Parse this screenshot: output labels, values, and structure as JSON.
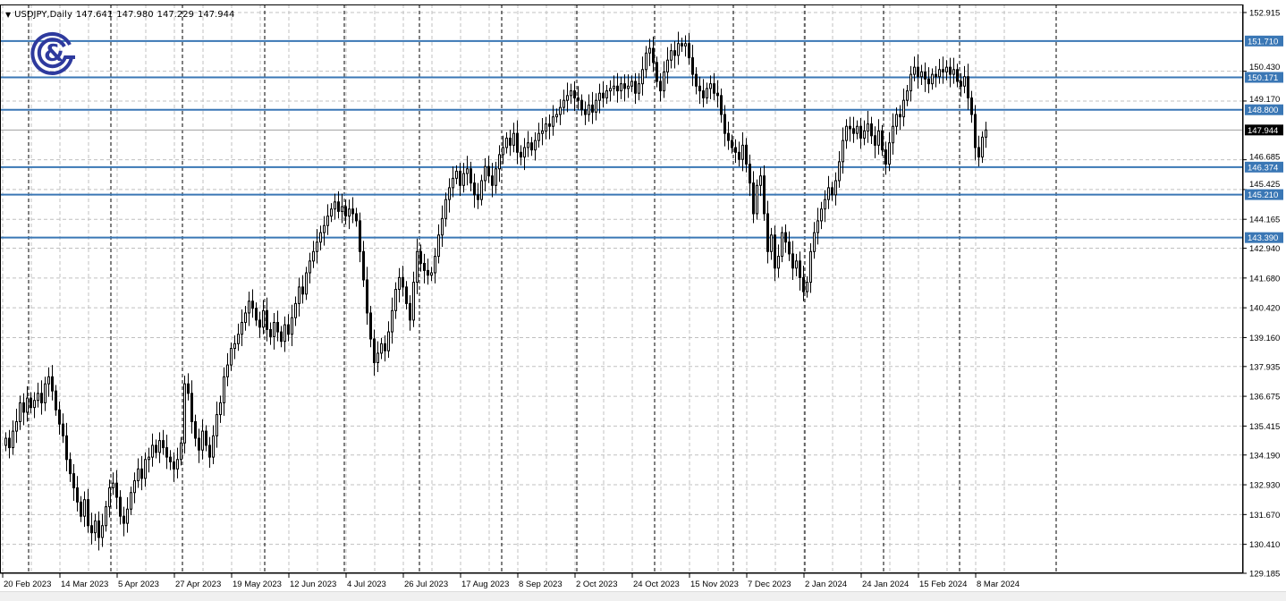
{
  "header": {
    "menu_icon": "triangle-down-icon",
    "symbol": "USDJPY,Daily",
    "open": "147.641",
    "high": "147.980",
    "low": "147.229",
    "close": "147.944"
  },
  "logo": {
    "text": "G&",
    "color": "#2e3a9e"
  },
  "colors": {
    "level_line": "#3a77b5",
    "level_label_bg": "#3a77b5",
    "current_label_bg": "#000000",
    "grid": "#c0c0c0",
    "bull_body": "#ffffff",
    "bear_body": "#000000"
  },
  "chart_data": {
    "type": "candlestick",
    "title": "USDJPY,Daily",
    "ylim": [
      129.185,
      152.915
    ],
    "y_ticks": [
      "152.915",
      "150.430",
      "149.170",
      "146.685",
      "145.425",
      "144.165",
      "142.940",
      "141.680",
      "140.420",
      "139.160",
      "137.935",
      "136.675",
      "135.415",
      "134.190",
      "132.930",
      "131.670",
      "130.410",
      "129.185"
    ],
    "x_ticks": [
      "20 Feb 2023",
      "14 Mar 2023",
      "5 Apr 2023",
      "27 Apr 2023",
      "19 May 2023",
      "12 Jun 2023",
      "4 Jul 2023",
      "26 Jul 2023",
      "17 Aug 2023",
      "8 Sep 2023",
      "2 Oct 2023",
      "24 Oct 2023",
      "15 Nov 2023",
      "7 Dec 2023",
      "2 Jan 2024",
      "24 Jan 2024",
      "15 Feb 2024",
      "8 Mar 2024"
    ],
    "x_tick_every_bars": 16,
    "grid": true,
    "current_price": "147.944",
    "levels": [
      "151.710",
      "150.171",
      "148.800",
      "146.374",
      "145.210",
      "143.390"
    ],
    "closes": [
      134.9,
      134.5,
      135.2,
      135.6,
      136.4,
      136.0,
      136.6,
      136.2,
      136.5,
      136.8,
      136.4,
      137.2,
      137.5,
      136.9,
      136.1,
      135.5,
      135.0,
      134.0,
      133.4,
      132.8,
      132.2,
      131.6,
      132.3,
      131.2,
      130.9,
      131.4,
      130.7,
      131.2,
      132.0,
      132.8,
      133.0,
      132.4,
      131.6,
      131.3,
      131.9,
      132.6,
      133.1,
      133.6,
      133.2,
      134.0,
      134.1,
      134.6,
      134.3,
      134.8,
      134.5,
      134.1,
      133.9,
      133.6,
      134.0,
      134.7,
      137.2,
      136.8,
      135.6,
      134.9,
      134.4,
      135.2,
      134.6,
      134.1,
      135.0,
      135.9,
      136.4,
      137.5,
      138.0,
      138.7,
      138.9,
      139.3,
      139.8,
      140.2,
      140.7,
      140.4,
      139.9,
      139.6,
      140.3,
      139.5,
      139.2,
      139.8,
      139.4,
      139.0,
      139.7,
      139.3,
      140.0,
      140.6,
      141.3,
      141.0,
      141.9,
      142.4,
      142.8,
      143.2,
      143.6,
      143.9,
      144.3,
      144.6,
      144.9,
      144.5,
      144.7,
      144.3,
      144.6,
      144.4,
      144.1,
      142.8,
      141.6,
      140.2,
      139.1,
      138.1,
      138.5,
      138.9,
      138.6,
      139.4,
      140.3,
      141.2,
      141.7,
      141.3,
      140.6,
      139.9,
      141.5,
      142.8,
      142.3,
      142.0,
      141.8,
      141.9,
      142.6,
      143.5,
      144.2,
      145.0,
      145.5,
      145.9,
      146.2,
      145.6,
      146.1,
      146.3,
      145.7,
      145.2,
      145.0,
      145.8,
      146.4,
      146.0,
      145.6,
      146.3,
      146.9,
      147.2,
      147.6,
      147.3,
      147.8,
      147.0,
      146.8,
      147.2,
      147.4,
      147.1,
      147.5,
      147.8,
      147.9,
      148.2,
      148.1,
      148.5,
      148.6,
      148.9,
      149.2,
      149.4,
      149.6,
      149.3,
      149.2,
      148.8,
      148.6,
      149.0,
      148.7,
      149.2,
      149.5,
      149.3,
      149.6,
      149.7,
      149.8,
      149.6,
      149.9,
      149.7,
      149.8,
      150.0,
      149.5,
      149.9,
      150.5,
      151.2,
      151.4,
      150.8,
      150.0,
      149.6,
      150.4,
      150.9,
      151.3,
      151.1,
      151.6,
      151.5,
      151.6,
      151.0,
      150.3,
      149.8,
      149.6,
      149.3,
      149.7,
      149.9,
      149.5,
      149.4,
      148.6,
      147.8,
      147.5,
      147.2,
      147.0,
      146.7,
      147.3,
      146.5,
      145.7,
      144.4,
      145.6,
      146.0,
      144.4,
      142.8,
      143.5,
      142.1,
      142.6,
      143.6,
      143.2,
      142.7,
      142.1,
      142.4,
      141.7,
      141.1,
      141.5,
      142.8,
      143.6,
      144.1,
      144.6,
      145.0,
      145.5,
      145.2,
      145.8,
      146.6,
      147.5,
      148.1,
      148.0,
      147.8,
      148.1,
      147.6,
      147.9,
      148.2,
      147.7,
      147.3,
      147.9,
      147.1,
      146.5,
      147.4,
      148.1,
      148.6,
      148.5,
      149.2,
      149.6,
      150.3,
      150.6,
      150.2,
      150.4,
      150.1,
      149.9,
      150.3,
      150.2,
      150.5,
      150.4,
      150.6,
      150.3,
      150.5,
      150.0,
      149.8,
      150.2,
      149.3,
      148.6,
      147.2,
      146.8,
      147.641,
      147.944
    ]
  }
}
